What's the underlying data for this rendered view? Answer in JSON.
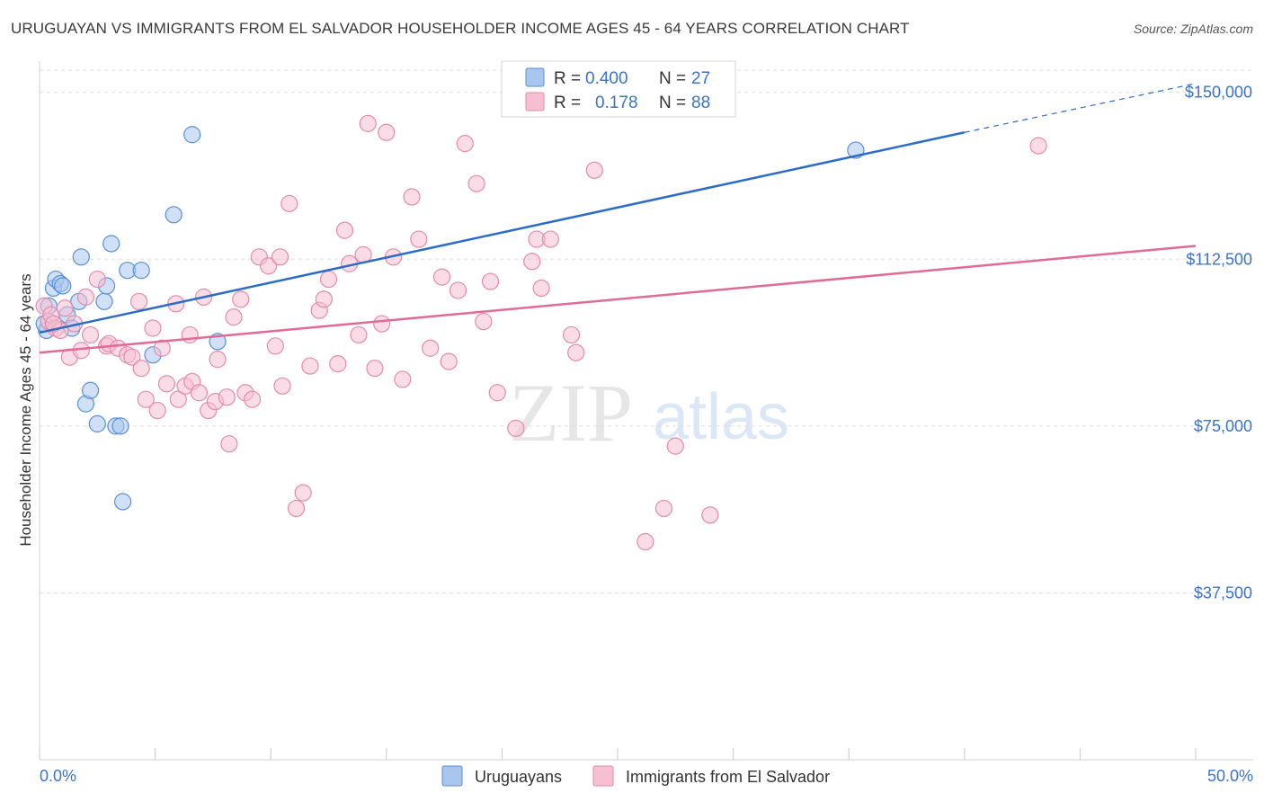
{
  "header": {
    "title": "URUGUAYAN VS IMMIGRANTS FROM EL SALVADOR HOUSEHOLDER INCOME AGES 45 - 64 YEARS CORRELATION CHART",
    "source": "Source: ZipAtlas.com"
  },
  "watermark": {
    "zip": "ZIP",
    "atlas": "atlas"
  },
  "chart_data": {
    "type": "scatter",
    "title": "URUGUAYAN VS IMMIGRANTS FROM EL SALVADOR HOUSEHOLDER INCOME AGES 45 - 64 YEARS CORRELATION CHART",
    "xlabel": "",
    "ylabel": "Householder Income Ages 45 - 64 years",
    "xlim": [
      0,
      50
    ],
    "ylim": [
      0,
      155000
    ],
    "x_tick_labels": {
      "left": "0.0%",
      "right": "50.0%"
    },
    "y_ticks": [
      {
        "value": 37500,
        "label": "$37,500"
      },
      {
        "value": 75000,
        "label": "$75,000"
      },
      {
        "value": 112500,
        "label": "$112,500"
      },
      {
        "value": 150000,
        "label": "$150,000"
      }
    ],
    "grid": true,
    "legend_position": "top-center",
    "series": [
      {
        "name": "Uruguayans",
        "color": "#5b8fd6",
        "fill": "#a9c6ee",
        "R_label": "R =",
        "R": "0.400",
        "N_label": "N =",
        "N": "27",
        "trend": {
          "x0": 0,
          "y0": 96000,
          "x1": 40,
          "y1": 141000,
          "dash_to_x": 50,
          "dash_to_y": 152000,
          "color": "#2b6cc8"
        },
        "points": [
          [
            0.3,
            96500
          ],
          [
            0.4,
            102000
          ],
          [
            0.6,
            106000
          ],
          [
            0.7,
            108000
          ],
          [
            0.9,
            107000
          ],
          [
            1.0,
            106500
          ],
          [
            1.2,
            100000
          ],
          [
            1.4,
            97000
          ],
          [
            1.7,
            103000
          ],
          [
            1.8,
            113000
          ],
          [
            2.0,
            80000
          ],
          [
            2.2,
            83000
          ],
          [
            2.5,
            75500
          ],
          [
            2.8,
            103000
          ],
          [
            2.9,
            106500
          ],
          [
            3.1,
            116000
          ],
          [
            3.3,
            75000
          ],
          [
            3.5,
            75000
          ],
          [
            3.6,
            58000
          ],
          [
            3.8,
            110000
          ],
          [
            4.4,
            110000
          ],
          [
            4.9,
            91000
          ],
          [
            5.8,
            122500
          ],
          [
            6.6,
            140500
          ],
          [
            7.7,
            94000
          ],
          [
            35.3,
            137000
          ],
          [
            0.2,
            98000
          ]
        ]
      },
      {
        "name": "Immigrants from El Salvador",
        "color": "#e58bab",
        "fill": "#f6bfd2",
        "R_label": "R =",
        "R": "0.178",
        "N_label": "N =",
        "N": "88",
        "trend": {
          "x0": 0,
          "y0": 91500,
          "x1": 50,
          "y1": 115500,
          "color": "#e06b96"
        },
        "points": [
          [
            0.2,
            102000
          ],
          [
            0.4,
            98500
          ],
          [
            0.5,
            100000
          ],
          [
            0.7,
            97000
          ],
          [
            0.9,
            96500
          ],
          [
            1.1,
            101500
          ],
          [
            1.3,
            90500
          ],
          [
            1.5,
            98000
          ],
          [
            1.8,
            92000
          ],
          [
            2.0,
            104000
          ],
          [
            2.2,
            95500
          ],
          [
            2.5,
            108000
          ],
          [
            2.9,
            93000
          ],
          [
            3.0,
            93500
          ],
          [
            3.4,
            92500
          ],
          [
            3.8,
            91000
          ],
          [
            4.0,
            90500
          ],
          [
            4.3,
            103000
          ],
          [
            4.4,
            88000
          ],
          [
            4.6,
            81000
          ],
          [
            4.9,
            97000
          ],
          [
            5.1,
            78500
          ],
          [
            5.3,
            92500
          ],
          [
            5.5,
            84500
          ],
          [
            5.9,
            102500
          ],
          [
            6.0,
            81000
          ],
          [
            6.3,
            84000
          ],
          [
            6.5,
            95500
          ],
          [
            6.6,
            85000
          ],
          [
            6.9,
            82500
          ],
          [
            7.1,
            104000
          ],
          [
            7.3,
            78500
          ],
          [
            7.6,
            80500
          ],
          [
            7.7,
            90000
          ],
          [
            8.1,
            81500
          ],
          [
            8.2,
            71000
          ],
          [
            8.4,
            99500
          ],
          [
            8.7,
            103500
          ],
          [
            8.9,
            82500
          ],
          [
            9.2,
            81000
          ],
          [
            9.5,
            113000
          ],
          [
            9.9,
            111000
          ],
          [
            10.2,
            93000
          ],
          [
            10.4,
            113000
          ],
          [
            10.5,
            84000
          ],
          [
            10.8,
            125000
          ],
          [
            11.1,
            56500
          ],
          [
            11.4,
            60000
          ],
          [
            11.7,
            88500
          ],
          [
            12.1,
            101000
          ],
          [
            12.3,
            103500
          ],
          [
            12.5,
            108000
          ],
          [
            12.9,
            89000
          ],
          [
            13.2,
            119000
          ],
          [
            13.4,
            111500
          ],
          [
            13.8,
            95500
          ],
          [
            14.0,
            113500
          ],
          [
            14.2,
            143000
          ],
          [
            14.5,
            88000
          ],
          [
            14.8,
            98000
          ],
          [
            15.0,
            141000
          ],
          [
            15.3,
            113000
          ],
          [
            15.7,
            85500
          ],
          [
            16.1,
            126500
          ],
          [
            16.4,
            117000
          ],
          [
            16.9,
            92500
          ],
          [
            17.4,
            108500
          ],
          [
            17.7,
            89500
          ],
          [
            18.1,
            105500
          ],
          [
            18.4,
            138500
          ],
          [
            18.9,
            129500
          ],
          [
            19.2,
            98500
          ],
          [
            19.5,
            107500
          ],
          [
            19.8,
            82500
          ],
          [
            20.6,
            74500
          ],
          [
            21.3,
            112000
          ],
          [
            21.5,
            117000
          ],
          [
            21.7,
            106000
          ],
          [
            22.1,
            117000
          ],
          [
            23.0,
            95500
          ],
          [
            23.2,
            91500
          ],
          [
            24.0,
            132500
          ],
          [
            26.2,
            49000
          ],
          [
            27.0,
            56500
          ],
          [
            27.5,
            70500
          ],
          [
            29.0,
            55000
          ],
          [
            43.2,
            138000
          ],
          [
            0.6,
            98000
          ]
        ]
      }
    ]
  }
}
